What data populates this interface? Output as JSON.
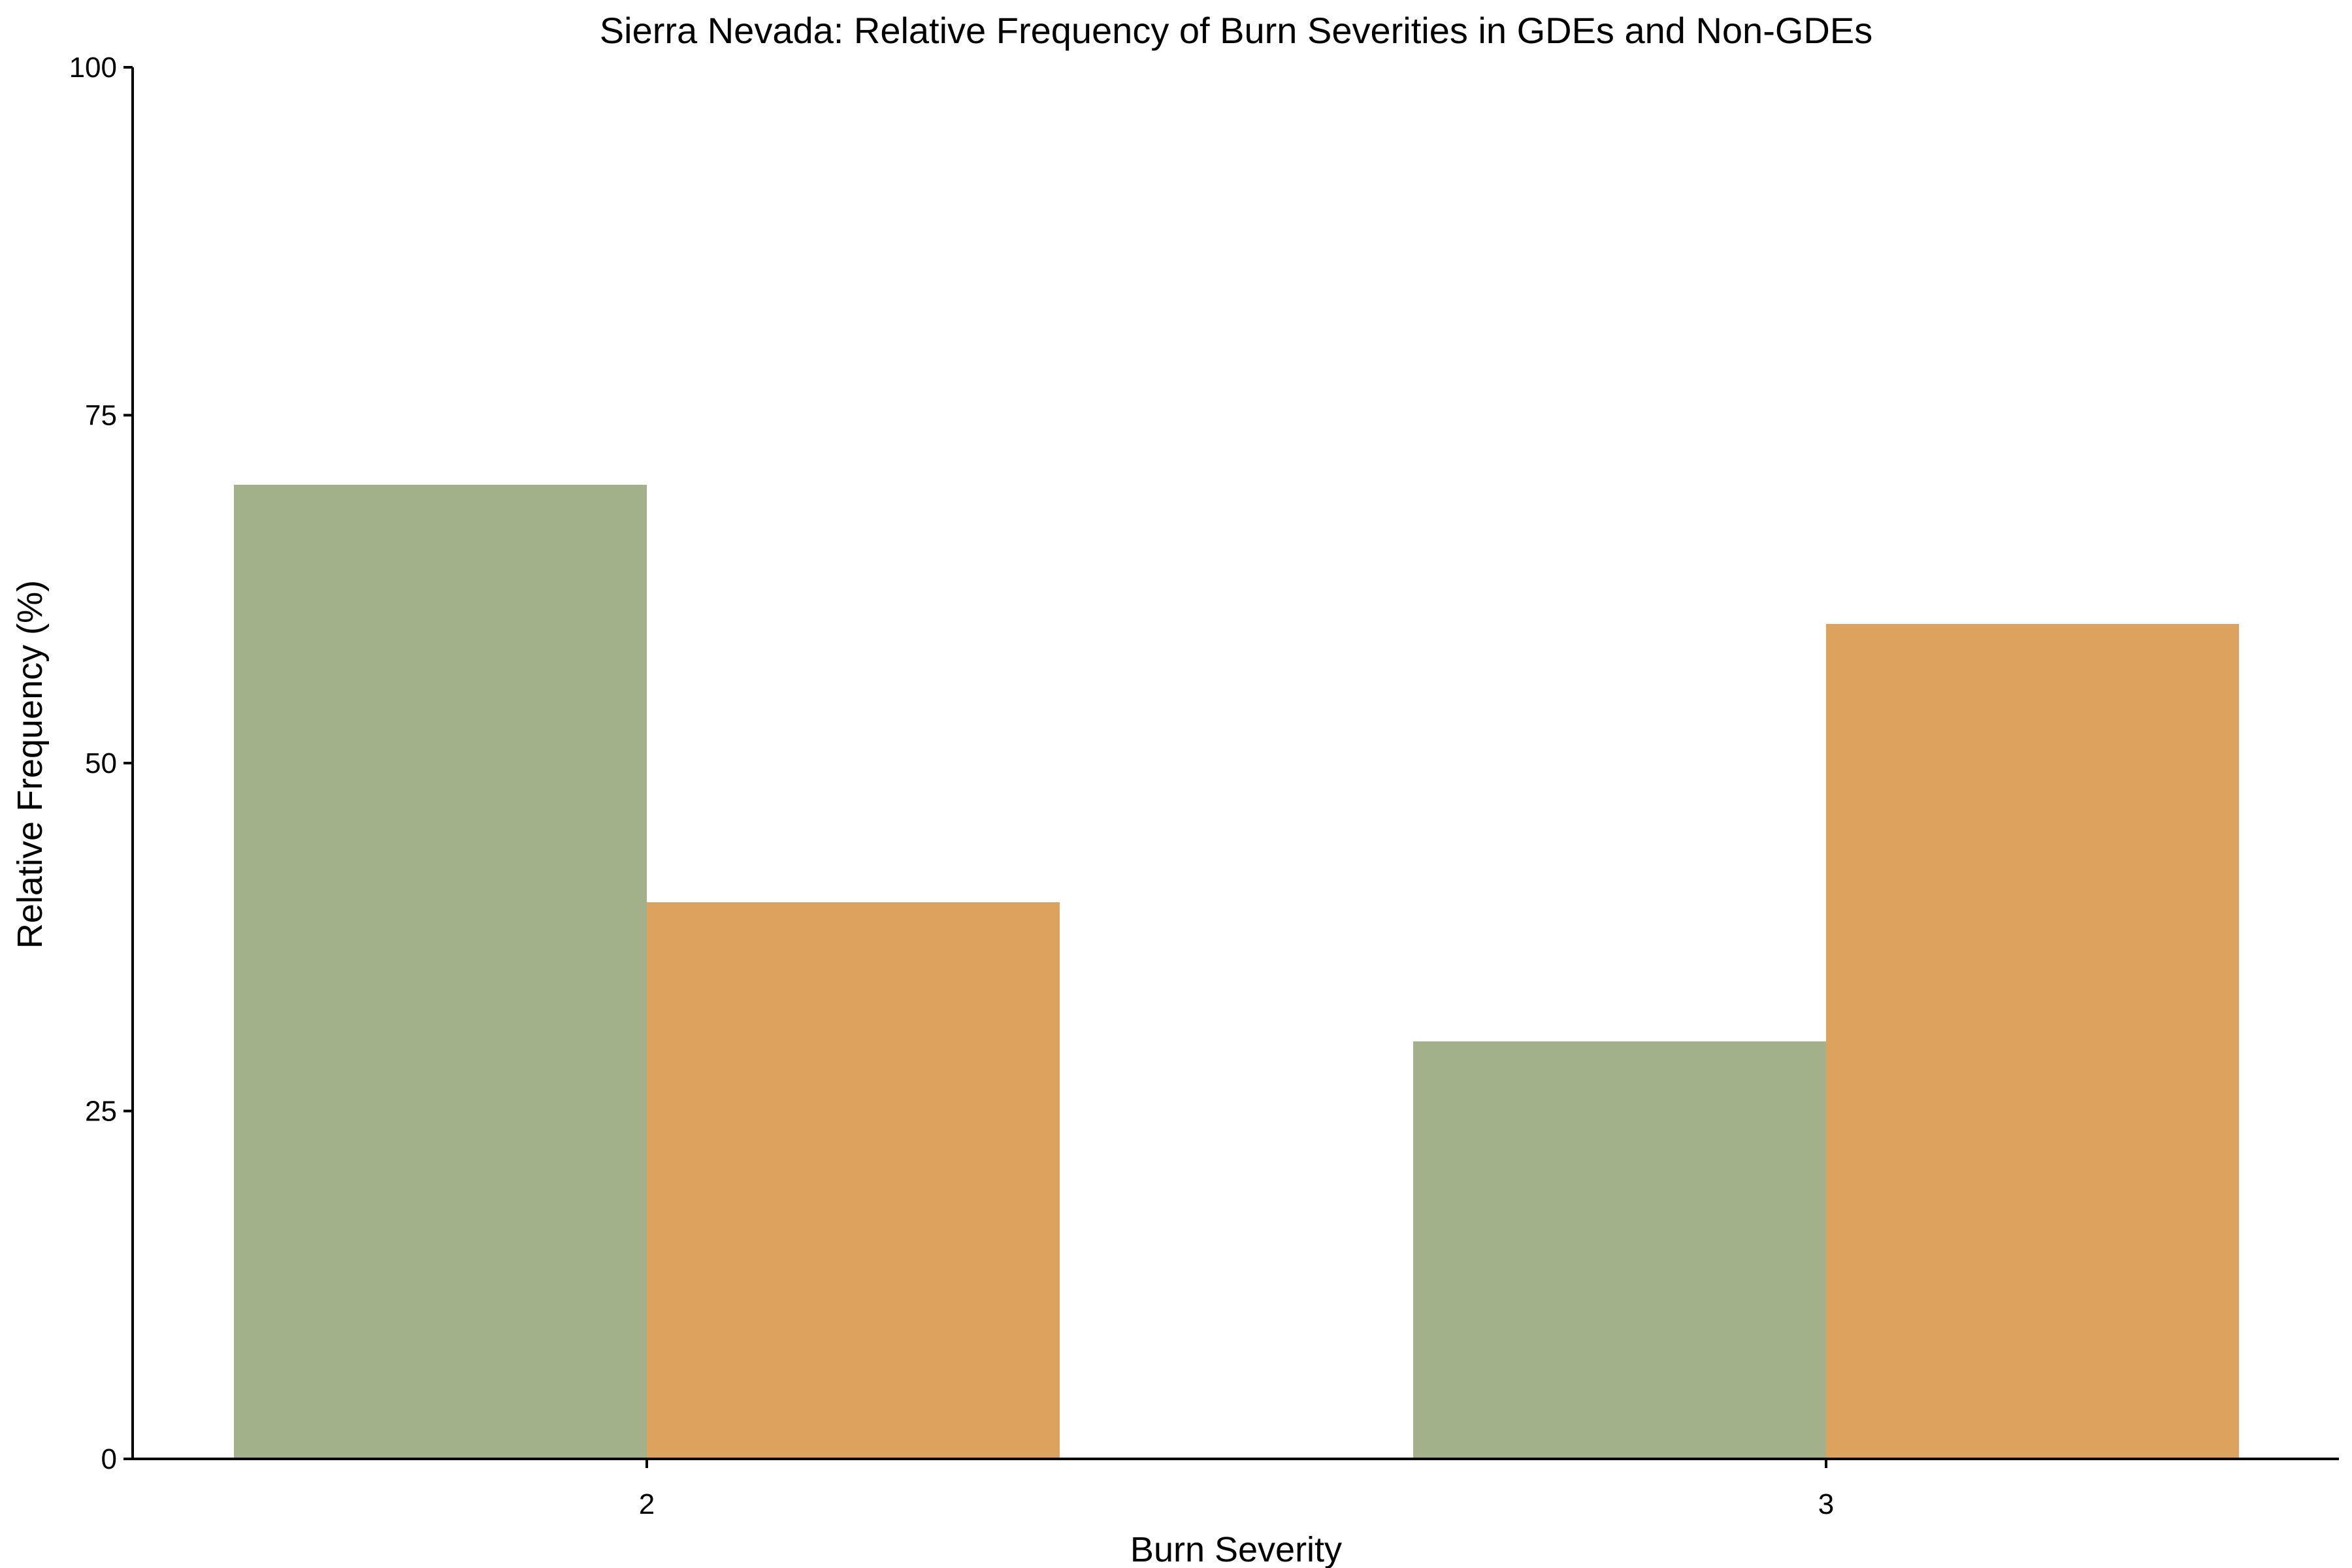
{
  "chart_data": {
    "type": "bar",
    "title": "Sierra Nevada: Relative Frequency of Burn Severities in GDEs and Non-GDEs",
    "xlabel": "Burn Severity",
    "ylabel": "Relative Frequency (%)",
    "categories": [
      "2",
      "3"
    ],
    "series": [
      {
        "values": [
          70,
          30
        ],
        "color": "#a2b189"
      },
      {
        "values": [
          40,
          60
        ],
        "color": "#dca25e"
      }
    ],
    "ylim": [
      0,
      100
    ],
    "yticks": [
      "0",
      "25",
      "50",
      "75",
      "100"
    ],
    "grid": false,
    "legend": "none"
  }
}
